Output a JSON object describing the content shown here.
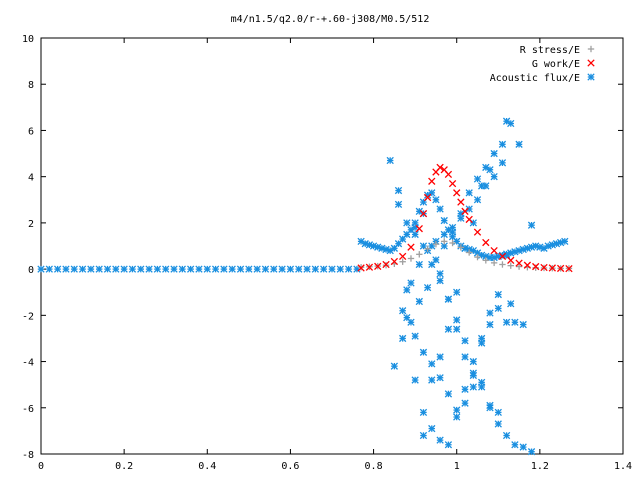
{
  "chart_data": {
    "type": "scatter",
    "title": "m4/n1.5/q2.0/r-+.60-j308/M0.5/512",
    "xlim": [
      0,
      1.4
    ],
    "ylim": [
      -8,
      10
    ],
    "xticks": [
      "0",
      "0.2",
      "0.4",
      "0.6",
      "0.8",
      "1",
      "1.2",
      "1.4"
    ],
    "yticks": [
      "-8",
      "-6",
      "-4",
      "-2",
      "0",
      "2",
      "4",
      "6",
      "8",
      "10"
    ],
    "legend_position": "top-right",
    "grid": false,
    "series": [
      {
        "name": "R stress/E",
        "marker": "plus",
        "color": "#a0a0a0",
        "x": [
          0.77,
          0.79,
          0.81,
          0.83,
          0.85,
          0.87,
          0.89,
          0.91,
          0.93,
          0.95,
          0.97,
          0.99,
          1.01,
          1.03,
          1.05,
          1.07,
          1.09,
          1.11,
          1.13,
          1.15,
          1.17,
          1.19,
          1.21,
          1.23,
          1.25,
          1.27
        ],
        "y": [
          0.08,
          0.1,
          0.13,
          0.17,
          0.23,
          0.32,
          0.46,
          0.64,
          0.88,
          1.08,
          1.2,
          1.13,
          0.94,
          0.72,
          0.52,
          0.38,
          0.27,
          0.2,
          0.15,
          0.11,
          0.08,
          0.06,
          0.05,
          0.04,
          0.03,
          0.03
        ]
      },
      {
        "name": "G work/E",
        "marker": "cross",
        "color": "#ff0000",
        "x": [
          0.77,
          0.79,
          0.81,
          0.83,
          0.85,
          0.87,
          0.89,
          0.91,
          0.92,
          0.93,
          0.94,
          0.95,
          0.96,
          0.97,
          0.98,
          0.99,
          1.0,
          1.01,
          1.02,
          1.03,
          1.05,
          1.07,
          1.09,
          1.11,
          1.13,
          1.15,
          1.17,
          1.19,
          1.21,
          1.23,
          1.25,
          1.27
        ],
        "y": [
          0.05,
          0.08,
          0.12,
          0.2,
          0.33,
          0.55,
          0.95,
          1.75,
          2.4,
          3.1,
          3.8,
          4.2,
          4.4,
          4.3,
          4.1,
          3.7,
          3.3,
          2.9,
          2.5,
          2.15,
          1.6,
          1.15,
          0.8,
          0.55,
          0.38,
          0.26,
          0.17,
          0.11,
          0.07,
          0.05,
          0.03,
          0.02
        ]
      },
      {
        "name": "Acoustic flux/E",
        "marker": "star",
        "color": "#1a8fe0",
        "x": [
          0.0,
          0.02,
          0.04,
          0.06,
          0.08,
          0.1,
          0.12,
          0.14,
          0.16,
          0.18,
          0.2,
          0.22,
          0.24,
          0.26,
          0.28,
          0.3,
          0.32,
          0.34,
          0.36,
          0.38,
          0.4,
          0.42,
          0.44,
          0.46,
          0.48,
          0.5,
          0.52,
          0.54,
          0.56,
          0.58,
          0.6,
          0.62,
          0.64,
          0.66,
          0.68,
          0.7,
          0.72,
          0.74,
          0.76,
          0.77,
          0.78,
          0.79,
          0.8,
          0.81,
          0.82,
          0.83,
          0.84,
          0.85,
          0.86,
          0.87,
          0.88,
          0.89,
          0.9,
          0.91,
          0.92,
          0.93,
          0.94,
          0.95,
          0.96,
          0.97,
          0.98,
          0.99,
          1.0,
          1.01,
          1.02,
          1.03,
          1.04,
          1.05,
          1.06,
          1.07,
          1.08,
          1.09,
          1.1,
          1.11,
          1.12,
          1.13,
          1.14,
          1.15,
          1.16,
          1.17,
          1.18,
          1.19,
          1.2,
          1.21,
          1.22,
          1.23,
          1.24,
          1.25,
          1.26,
          0.84,
          0.86,
          0.88,
          0.9,
          0.92,
          0.94,
          0.96,
          0.98,
          1.0,
          1.02,
          1.04,
          1.06,
          1.08,
          1.1,
          1.12,
          1.14,
          1.16,
          1.18,
          0.85,
          0.87,
          0.89,
          0.91,
          0.93,
          0.95,
          0.97,
          0.99,
          1.01,
          1.03,
          1.05,
          1.07,
          1.09,
          1.11,
          1.13,
          1.15,
          0.86,
          0.88,
          0.9,
          0.92,
          0.94,
          0.96,
          0.98,
          1.0,
          1.02,
          1.04,
          1.06,
          1.08,
          1.1,
          1.12,
          1.14,
          0.87,
          0.89,
          0.91,
          0.93,
          0.95,
          0.97,
          0.99,
          1.01,
          1.03,
          1.05,
          1.07,
          1.09,
          1.11,
          1.13,
          0.88,
          0.9,
          0.92,
          0.94,
          0.96,
          0.98,
          1.0,
          1.02,
          1.04,
          1.06,
          1.08,
          1.1,
          1.12,
          0.9,
          0.92,
          0.94,
          0.96,
          0.98,
          1.0,
          1.02,
          1.04,
          1.06,
          1.08,
          1.1,
          0.92,
          0.94,
          0.96,
          0.98,
          1.0,
          1.02,
          1.04,
          1.06,
          1.08,
          1.12,
          1.16,
          1.18
        ],
        "y": [
          0,
          0,
          0,
          0,
          0,
          0,
          0,
          0,
          0,
          0,
          0,
          0,
          0,
          0,
          0,
          0,
          0,
          0,
          0,
          0,
          0,
          0,
          0,
          0,
          0,
          0,
          0,
          0,
          0,
          0,
          0,
          0,
          0,
          0,
          0,
          0,
          0,
          0,
          0,
          1.2,
          1.1,
          1.05,
          1.0,
          0.95,
          0.9,
          0.85,
          0.8,
          0.9,
          1.1,
          1.3,
          1.5,
          1.7,
          2.0,
          2.5,
          2.9,
          3.2,
          3.3,
          3.0,
          2.6,
          2.1,
          1.7,
          1.4,
          1.2,
          1.0,
          0.9,
          0.85,
          0.8,
          0.7,
          0.6,
          0.55,
          0.5,
          0.5,
          0.55,
          0.6,
          0.65,
          0.7,
          0.75,
          0.8,
          0.85,
          0.9,
          0.95,
          1.0,
          0.95,
          0.9,
          1.0,
          1.05,
          1.1,
          1.15,
          1.2,
          4.7,
          3.4,
          2.0,
          1.5,
          1.0,
          0.2,
          -0.5,
          -1.3,
          -2.2,
          -3.1,
          -4.0,
          -4.9,
          -5.9,
          -6.7,
          -7.2,
          -7.6,
          -7.7,
          -7.9,
          -4.2,
          -3.0,
          -2.3,
          -1.4,
          -0.8,
          0.4,
          1.0,
          1.6,
          2.4,
          3.3,
          3.9,
          4.4,
          5.0,
          5.4,
          6.3,
          5.4,
          2.8,
          -0.9,
          -4.8,
          -6.2,
          -6.9,
          -7.4,
          -7.6,
          -6.4,
          -5.2,
          -4.5,
          -3.2,
          -1.9,
          -1.1,
          -2.3,
          -2.3,
          -1.8,
          -0.6,
          0.2,
          0.8,
          1.2,
          1.5,
          1.8,
          2.2,
          2.6,
          3.0,
          3.6,
          4.0,
          4.6,
          -1.5,
          -2.1,
          -2.9,
          -3.6,
          -4.1,
          -4.7,
          -5.4,
          -6.1,
          -5.8,
          -5.1,
          -3.0,
          -2.4,
          -1.7,
          0.6,
          1.8,
          2.4,
          1.0,
          -0.2,
          -1.3,
          -2.6,
          -3.8,
          -4.6,
          -5.1,
          -6.0,
          -6.2,
          -7.2,
          -4.8,
          -3.8,
          -2.6,
          -1.0,
          0.9,
          2.0,
          3.6,
          4.3,
          6.4,
          -2.4,
          1.9
        ]
      }
    ]
  }
}
